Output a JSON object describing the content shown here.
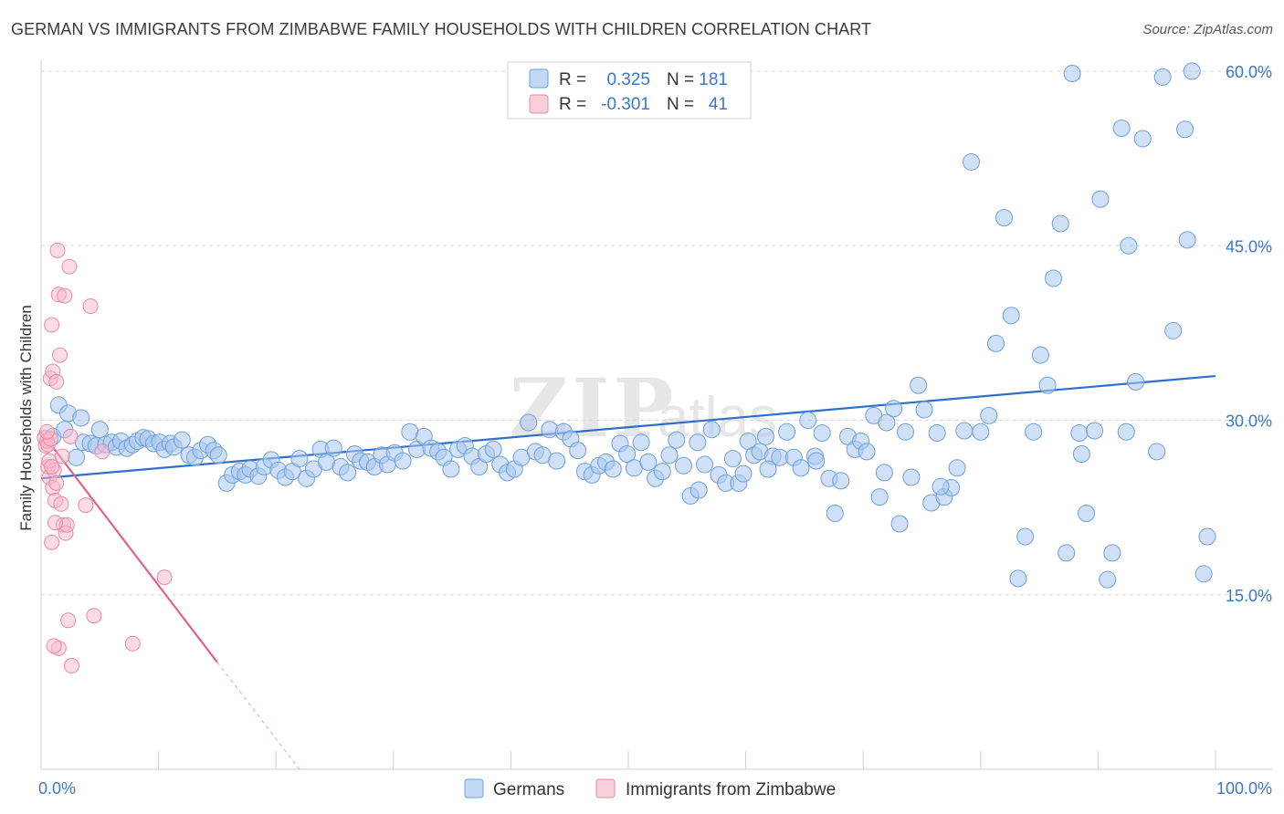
{
  "title": "GERMAN VS IMMIGRANTS FROM ZIMBABWE FAMILY HOUSEHOLDS WITH CHILDREN CORRELATION CHART",
  "source": "Source: ZipAtlas.com",
  "watermark": {
    "part1": "ZIP",
    "part2": "atlas"
  },
  "colors": {
    "german_fill": "#a9c8f0",
    "german_stroke": "#6f9fdc",
    "german_line": "#2e6fcc",
    "zim_fill": "#f7b8c9",
    "zim_stroke": "#e98aa6",
    "zim_line": "#e0628b",
    "axis_text": "#3b78c9",
    "grid": "#d6d6d6"
  },
  "legend": {
    "rows": [
      {
        "r_label": "R =",
        "r_value": "0.325",
        "n_label": "N =",
        "n_value": "181"
      },
      {
        "r_label": "R =",
        "r_value": "-0.301",
        "n_label": "N =",
        "n_value": "41"
      }
    ]
  },
  "chart_data": {
    "type": "scatter",
    "title": "GERMAN VS IMMIGRANTS FROM ZIMBABWE FAMILY HOUSEHOLDS WITH CHILDREN CORRELATION CHART",
    "xlabel": "",
    "ylabel": "Family Households with Children",
    "xlim": [
      0,
      100
    ],
    "ylim": [
      0,
      60
    ],
    "x_tick_labels": [
      "0.0%",
      "100.0%"
    ],
    "y_ticks": [
      15,
      30,
      45,
      60
    ],
    "y_tick_labels": [
      "15.0%",
      "30.0%",
      "45.0%",
      "60.0%"
    ],
    "grid": true,
    "legend_position": "top-center",
    "series": [
      {
        "name": "Germans",
        "r": 0.325,
        "n": 181,
        "trend": {
          "x": [
            0,
            100
          ],
          "y": [
            25.0,
            33.8
          ]
        },
        "points": [
          [
            1.0,
            28.6
          ],
          [
            1.5,
            31.3
          ],
          [
            2.0,
            29.2
          ],
          [
            2.3,
            30.6
          ],
          [
            3.0,
            26.8
          ],
          [
            3.4,
            30.2
          ],
          [
            3.6,
            28.1
          ],
          [
            4.2,
            28.0
          ],
          [
            4.7,
            27.8
          ],
          [
            5.0,
            29.2
          ],
          [
            5.5,
            27.9
          ],
          [
            6.0,
            28.1
          ],
          [
            6.4,
            27.7
          ],
          [
            6.8,
            28.2
          ],
          [
            7.3,
            27.6
          ],
          [
            7.8,
            27.9
          ],
          [
            8.2,
            28.2
          ],
          [
            8.7,
            28.5
          ],
          [
            9.1,
            28.4
          ],
          [
            9.6,
            28.0
          ],
          [
            10.1,
            28.1
          ],
          [
            10.5,
            27.5
          ],
          [
            11.0,
            28.0
          ],
          [
            11.3,
            27.7
          ],
          [
            12.0,
            28.3
          ],
          [
            12.6,
            27.0
          ],
          [
            13.1,
            26.8
          ],
          [
            13.6,
            27.4
          ],
          [
            14.2,
            27.9
          ],
          [
            14.7,
            27.4
          ],
          [
            15.1,
            27.0
          ],
          [
            15.8,
            24.6
          ],
          [
            16.3,
            25.3
          ],
          [
            16.9,
            25.6
          ],
          [
            17.4,
            25.3
          ],
          [
            17.8,
            25.8
          ],
          [
            18.5,
            25.2
          ],
          [
            19.0,
            26.0
          ],
          [
            19.6,
            26.6
          ],
          [
            20.2,
            25.7
          ],
          [
            20.8,
            25.1
          ],
          [
            21.4,
            25.6
          ],
          [
            22.0,
            26.7
          ],
          [
            22.6,
            25.0
          ],
          [
            23.2,
            25.8
          ],
          [
            23.8,
            27.5
          ],
          [
            24.3,
            26.4
          ],
          [
            24.9,
            27.6
          ],
          [
            25.5,
            26.0
          ],
          [
            26.1,
            25.5
          ],
          [
            26.7,
            27.1
          ],
          [
            27.2,
            26.5
          ],
          [
            27.8,
            26.4
          ],
          [
            28.4,
            26.0
          ],
          [
            29.0,
            27.0
          ],
          [
            29.5,
            26.2
          ],
          [
            30.1,
            27.2
          ],
          [
            30.8,
            26.5
          ],
          [
            31.4,
            29.0
          ],
          [
            32.0,
            27.5
          ],
          [
            32.6,
            28.6
          ],
          [
            33.2,
            27.6
          ],
          [
            33.8,
            27.3
          ],
          [
            34.3,
            26.8
          ],
          [
            34.9,
            25.8
          ],
          [
            35.5,
            27.5
          ],
          [
            36.1,
            27.8
          ],
          [
            36.7,
            26.9
          ],
          [
            37.3,
            26.0
          ],
          [
            37.9,
            27.1
          ],
          [
            38.5,
            27.5
          ],
          [
            39.1,
            26.2
          ],
          [
            39.7,
            25.5
          ],
          [
            40.3,
            25.8
          ],
          [
            40.9,
            26.8
          ],
          [
            41.5,
            29.8
          ],
          [
            42.1,
            27.3
          ],
          [
            42.7,
            27.0
          ],
          [
            43.3,
            29.2
          ],
          [
            43.9,
            26.5
          ],
          [
            44.5,
            29.0
          ],
          [
            45.1,
            28.4
          ],
          [
            45.7,
            27.4
          ],
          [
            46.3,
            25.6
          ],
          [
            46.9,
            25.3
          ],
          [
            47.5,
            26.1
          ],
          [
            48.1,
            26.4
          ],
          [
            48.7,
            25.8
          ],
          [
            49.3,
            28.0
          ],
          [
            49.9,
            27.1
          ],
          [
            50.5,
            25.9
          ],
          [
            51.1,
            28.1
          ],
          [
            51.7,
            26.4
          ],
          [
            52.3,
            25.0
          ],
          [
            52.9,
            25.6
          ],
          [
            53.5,
            27.0
          ],
          [
            54.1,
            28.3
          ],
          [
            54.7,
            26.1
          ],
          [
            55.3,
            23.5
          ],
          [
            55.9,
            28.1
          ],
          [
            56.5,
            26.2
          ],
          [
            57.1,
            29.2
          ],
          [
            57.7,
            25.3
          ],
          [
            58.3,
            24.6
          ],
          [
            58.9,
            26.7
          ],
          [
            59.4,
            24.6
          ],
          [
            59.8,
            25.4
          ],
          [
            60.2,
            28.2
          ],
          [
            60.7,
            27.0
          ],
          [
            61.2,
            27.3
          ],
          [
            61.7,
            28.6
          ],
          [
            62.3,
            26.9
          ],
          [
            62.9,
            26.8
          ],
          [
            63.5,
            29.0
          ],
          [
            64.1,
            26.8
          ],
          [
            64.7,
            25.9
          ],
          [
            65.3,
            30.0
          ],
          [
            65.9,
            26.9
          ],
          [
            66.5,
            28.9
          ],
          [
            67.1,
            25.0
          ],
          [
            67.6,
            22.0
          ],
          [
            68.1,
            24.8
          ],
          [
            68.7,
            28.6
          ],
          [
            69.3,
            27.5
          ],
          [
            69.8,
            28.2
          ],
          [
            70.3,
            27.3
          ],
          [
            70.9,
            30.4
          ],
          [
            71.4,
            23.4
          ],
          [
            72.0,
            29.8
          ],
          [
            72.6,
            31.0
          ],
          [
            73.1,
            21.1
          ],
          [
            73.6,
            29.0
          ],
          [
            74.1,
            25.1
          ],
          [
            74.7,
            33.0
          ],
          [
            75.2,
            30.9
          ],
          [
            75.8,
            22.9
          ],
          [
            76.3,
            28.9
          ],
          [
            76.9,
            23.4
          ],
          [
            77.5,
            24.2
          ],
          [
            78.0,
            25.9
          ],
          [
            78.6,
            29.1
          ],
          [
            79.2,
            52.2
          ],
          [
            80.0,
            29.0
          ],
          [
            80.7,
            30.4
          ],
          [
            81.3,
            36.6
          ],
          [
            82.0,
            47.4
          ],
          [
            82.6,
            39.0
          ],
          [
            83.2,
            16.4
          ],
          [
            83.8,
            20.0
          ],
          [
            84.5,
            29.0
          ],
          [
            85.1,
            35.6
          ],
          [
            85.7,
            33.0
          ],
          [
            86.2,
            42.2
          ],
          [
            86.8,
            46.9
          ],
          [
            87.3,
            18.6
          ],
          [
            87.8,
            59.8
          ],
          [
            88.4,
            28.9
          ],
          [
            89.0,
            22.0
          ],
          [
            89.7,
            29.1
          ],
          [
            90.2,
            49.0
          ],
          [
            90.8,
            16.3
          ],
          [
            91.2,
            18.6
          ],
          [
            92.0,
            55.1
          ],
          [
            92.6,
            45.0
          ],
          [
            93.2,
            33.3
          ],
          [
            93.8,
            54.2
          ],
          [
            95.0,
            27.3
          ],
          [
            95.5,
            59.5
          ],
          [
            96.4,
            37.7
          ],
          [
            97.4,
            55.0
          ],
          [
            97.6,
            45.5
          ],
          [
            98.0,
            60.0
          ],
          [
            99.0,
            16.8
          ],
          [
            99.3,
            20.0
          ],
          [
            92.4,
            29.0
          ],
          [
            88.6,
            27.1
          ],
          [
            76.6,
            24.3
          ],
          [
            71.8,
            25.5
          ],
          [
            66.0,
            26.5
          ],
          [
            61.9,
            25.8
          ],
          [
            56.0,
            24.0
          ]
        ]
      },
      {
        "name": "Immigrants from Zimbabwe",
        "r": -0.301,
        "n": 41,
        "trend": {
          "x": [
            0,
            15
          ],
          "y": [
            29.0,
            9.2
          ],
          "dashed_x": [
            15,
            22
          ],
          "dashed_y": [
            9.2,
            0.0
          ]
        },
        "points": [
          [
            0.3,
            28.5
          ],
          [
            0.4,
            27.8
          ],
          [
            0.5,
            28.2
          ],
          [
            0.6,
            27.9
          ],
          [
            0.6,
            26.0
          ],
          [
            0.7,
            25.1
          ],
          [
            0.8,
            33.6
          ],
          [
            0.8,
            28.4
          ],
          [
            0.9,
            38.2
          ],
          [
            1.0,
            34.2
          ],
          [
            1.0,
            24.2
          ],
          [
            1.1,
            25.7
          ],
          [
            1.2,
            23.1
          ],
          [
            1.3,
            33.3
          ],
          [
            1.4,
            44.6
          ],
          [
            1.5,
            40.8
          ],
          [
            1.5,
            10.4
          ],
          [
            1.6,
            35.6
          ],
          [
            1.7,
            22.8
          ],
          [
            1.8,
            26.9
          ],
          [
            1.9,
            21.0
          ],
          [
            2.0,
            40.7
          ],
          [
            2.1,
            20.3
          ],
          [
            2.2,
            21.0
          ],
          [
            2.3,
            12.8
          ],
          [
            2.4,
            43.2
          ],
          [
            2.5,
            28.6
          ],
          [
            2.6,
            8.9
          ],
          [
            0.9,
            19.5
          ],
          [
            1.1,
            10.6
          ],
          [
            1.3,
            24.6
          ],
          [
            3.8,
            22.7
          ],
          [
            4.2,
            39.8
          ],
          [
            4.5,
            13.2
          ],
          [
            5.2,
            27.3
          ],
          [
            7.8,
            10.8
          ],
          [
            10.5,
            16.5
          ],
          [
            0.5,
            29.0
          ],
          [
            0.7,
            26.5
          ],
          [
            1.2,
            21.2
          ],
          [
            0.9,
            26.0
          ]
        ]
      }
    ]
  },
  "bottom_legend": {
    "items": [
      "Germans",
      "Immigrants from Zimbabwe"
    ]
  }
}
